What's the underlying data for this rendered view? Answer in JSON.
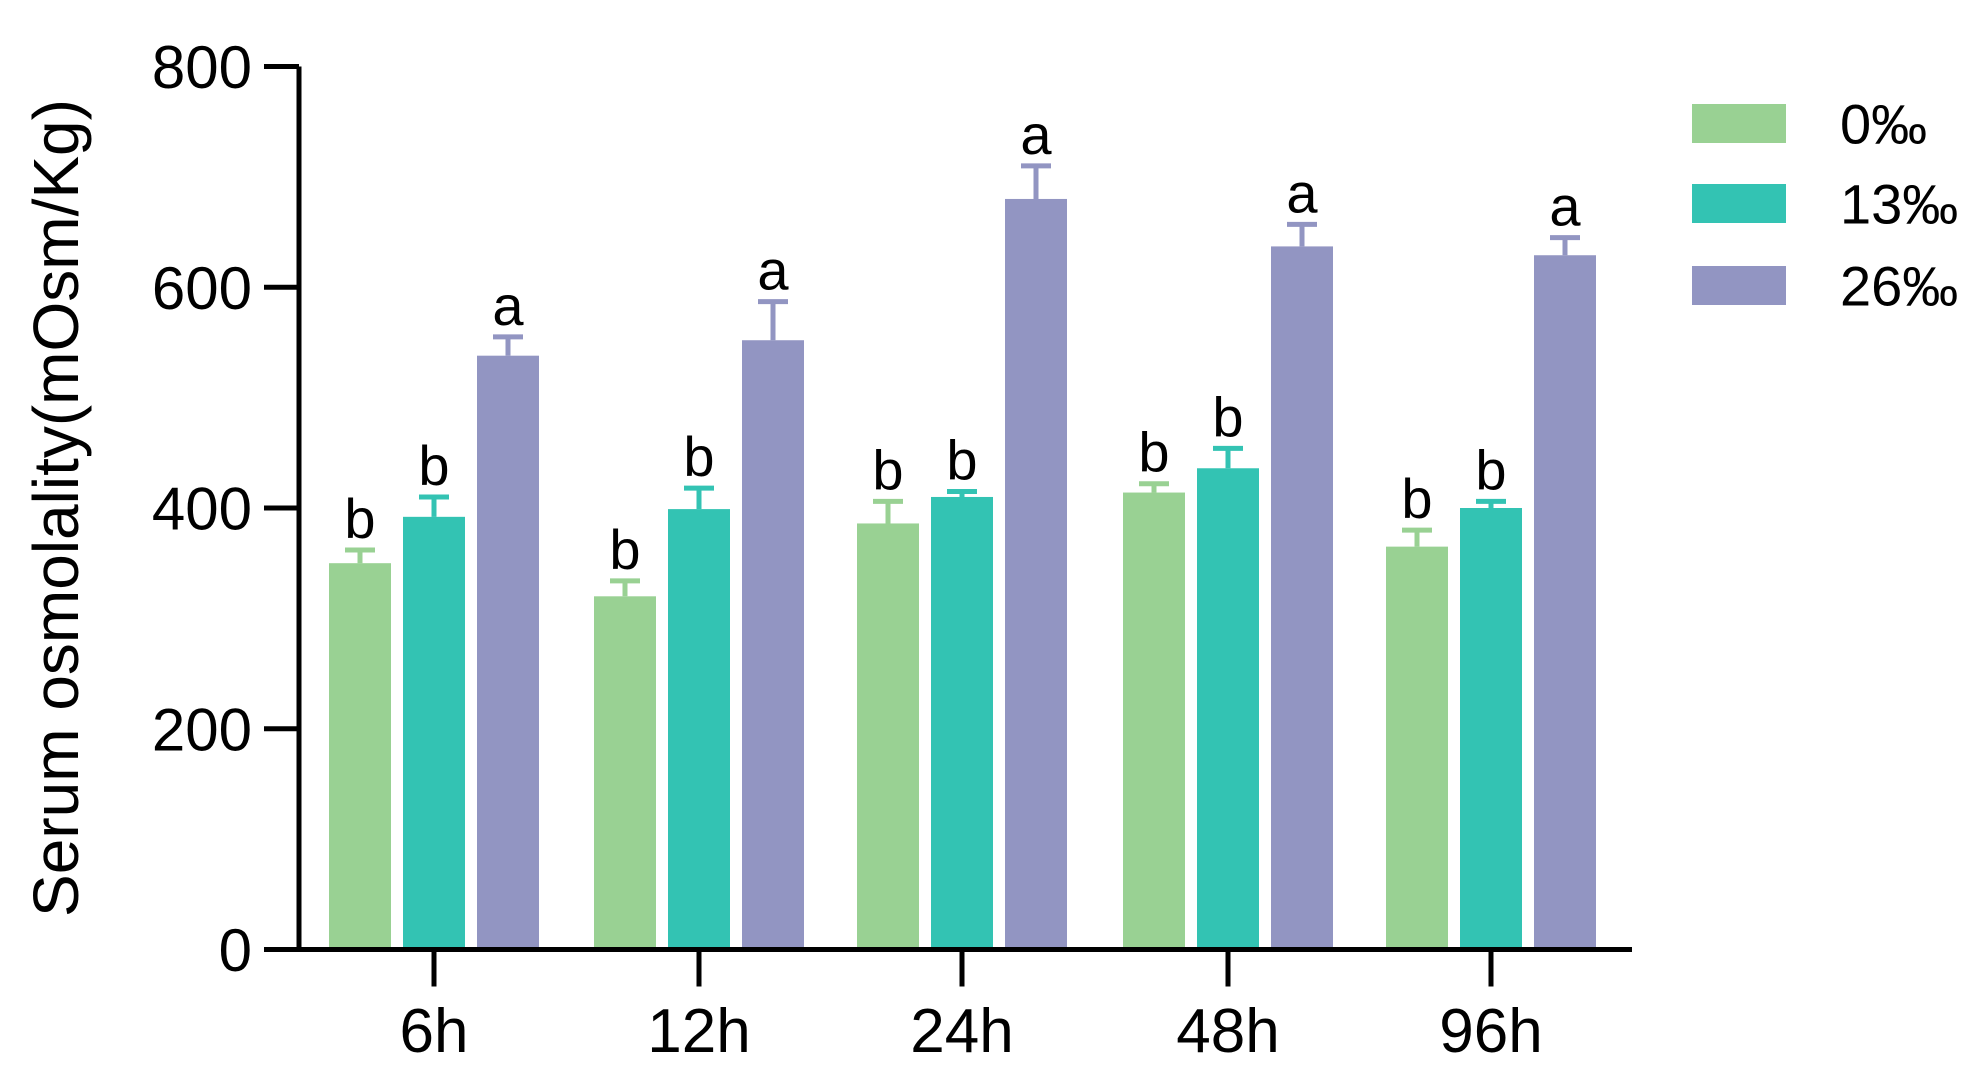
{
  "chart_data": {
    "type": "bar",
    "title": "",
    "ylabel": "Serum osmolality(mOsm/Kg)",
    "xlabel": "",
    "ylim": [
      0,
      800
    ],
    "yticks": [
      0,
      200,
      400,
      600,
      800
    ],
    "categories": [
      "6h",
      "12h",
      "24h",
      "48h",
      "96h"
    ],
    "series": [
      {
        "name": "0‰",
        "color": "#99D193",
        "values": [
          350,
          320,
          386,
          414,
          365
        ],
        "errors": [
          12,
          14,
          20,
          8,
          15
        ],
        "sig_letters": [
          "b",
          "b",
          "b",
          "b",
          "b"
        ]
      },
      {
        "name": "13‰",
        "color": "#33C3B3",
        "values": [
          392,
          399,
          410,
          436,
          400
        ],
        "errors": [
          18,
          19,
          5,
          18,
          6
        ],
        "sig_letters": [
          "b",
          "b",
          "b",
          "b",
          "b"
        ]
      },
      {
        "name": "26‰",
        "color": "#9295C2",
        "values": [
          538,
          552,
          680,
          637,
          629
        ],
        "errors": [
          17,
          35,
          30,
          20,
          16
        ],
        "sig_letters": [
          "a",
          "a",
          "a",
          "a",
          "a"
        ]
      }
    ],
    "legend": {
      "position": "right",
      "entries": [
        "0‰",
        "13‰",
        "26‰"
      ]
    },
    "grid": false,
    "error_bar_style": "upper-cap-only",
    "error_bar_color": "same-as-series",
    "axis_color": "#000000",
    "background": "#FFFFFF"
  }
}
